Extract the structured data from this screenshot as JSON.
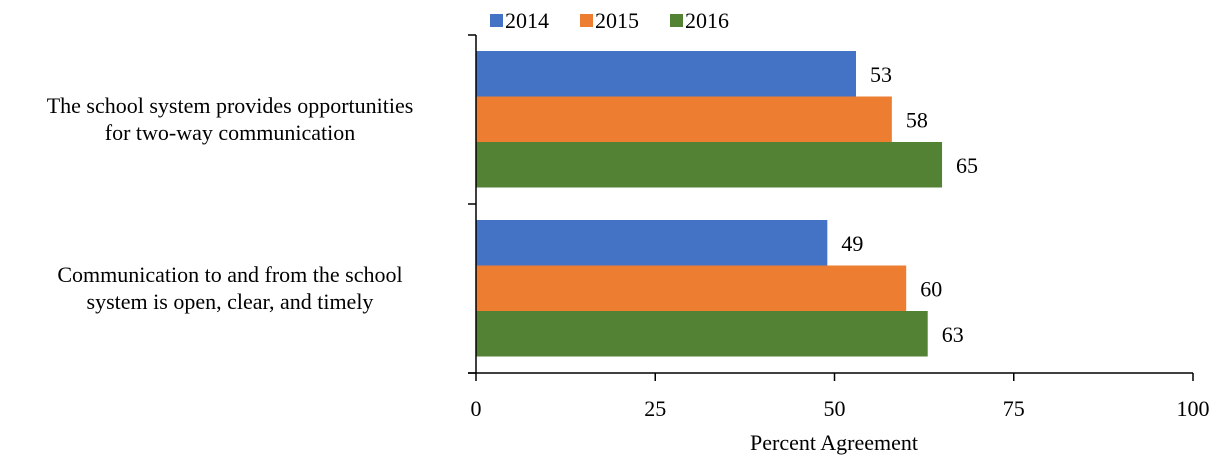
{
  "chart_data": {
    "type": "bar",
    "orientation": "horizontal",
    "categories": [
      [
        "The school system provides opportunities",
        "for two-way communication"
      ],
      [
        "Communication to and from the school",
        "system is open, clear, and timely"
      ]
    ],
    "series": [
      {
        "name": "2014",
        "color": "#4472c4",
        "values": [
          53,
          49
        ]
      },
      {
        "name": "2015",
        "color": "#ed7d31",
        "values": [
          58,
          60
        ]
      },
      {
        "name": "2016",
        "color": "#548235",
        "values": [
          65,
          63
        ]
      }
    ],
    "title": "",
    "xlabel": "Percent Agreement",
    "ylabel": "",
    "xlim": [
      0,
      100
    ],
    "xticks": [
      0,
      25,
      50,
      75,
      100
    ],
    "grid": false,
    "legend_position": "top",
    "data_labels": true
  }
}
